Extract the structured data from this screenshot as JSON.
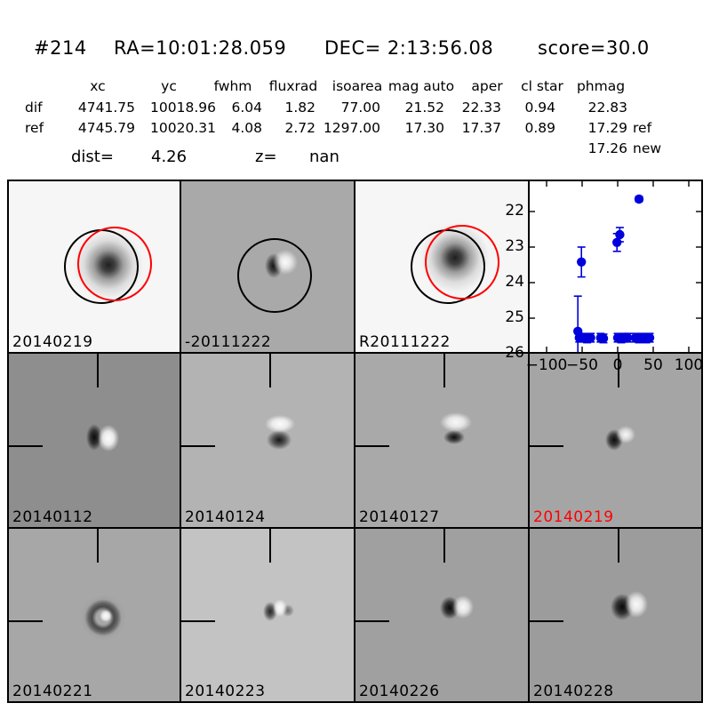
{
  "header": {
    "candidate_id": "#214",
    "ra": "RA=10:01:28.059",
    "dec": "DEC= 2:13:56.08",
    "score": "score=30.0"
  },
  "photometry": {
    "columns": [
      "xc",
      "yc",
      "fwhm",
      "fluxrad",
      "isoarea",
      "mag auto",
      "aper",
      "cl star",
      "phmag"
    ],
    "rows": [
      {
        "label": "dif",
        "values": [
          "4741.75",
          "10018.96",
          "6.04",
          "1.82",
          "77.00",
          "21.52",
          "22.33",
          "0.94",
          "22.83"
        ],
        "suffix": ""
      },
      {
        "label": "ref",
        "values": [
          "4745.79",
          "10020.31",
          "4.08",
          "2.72",
          "1297.00",
          "17.30",
          "17.37",
          "0.89",
          "17.29"
        ],
        "suffix": "ref"
      }
    ],
    "extra_phmag": {
      "value": "17.26",
      "suffix": "new"
    }
  },
  "info": {
    "dist_label": "dist=",
    "dist_value": "4.26",
    "z_label": "z=",
    "z_value": "nan"
  },
  "stamps": [
    {
      "id": "r1c1",
      "label": "20140219",
      "label_color": "#000000",
      "bg": "#f6f6f6",
      "overlays": "black-circle,red-circle"
    },
    {
      "id": "r1c2",
      "label": "-20111222",
      "label_color": "#000000",
      "bg": "#a9a9a9",
      "overlays": "black-circle"
    },
    {
      "id": "r1c3",
      "label": "R20111222",
      "label_color": "#000000",
      "bg": "#f6f6f6",
      "overlays": "black-circle,red-circle"
    },
    {
      "id": "r2c1",
      "label": "20140112",
      "label_color": "#000000",
      "bg": "#8e8e8e",
      "overlays": "crosshair"
    },
    {
      "id": "r2c2",
      "label": "20140124",
      "label_color": "#000000",
      "bg": "#b3b3b3",
      "overlays": "crosshair"
    },
    {
      "id": "r2c3",
      "label": "20140127",
      "label_color": "#000000",
      "bg": "#a9a9a9",
      "overlays": "crosshair"
    },
    {
      "id": "r2c4",
      "label": "20140219",
      "label_color": "#ff0000",
      "bg": "#a5a5a5",
      "overlays": "crosshair"
    },
    {
      "id": "r3c1",
      "label": "20140221",
      "label_color": "#000000",
      "bg": "#a7a7a7",
      "overlays": "crosshair"
    },
    {
      "id": "r3c2",
      "label": "20140223",
      "label_color": "#000000",
      "bg": "#c3c3c3",
      "overlays": "crosshair"
    },
    {
      "id": "r3c3",
      "label": "20140226",
      "label_color": "#000000",
      "bg": "#a0a0a0",
      "overlays": "crosshair"
    },
    {
      "id": "r3c4",
      "label": "20140228",
      "label_color": "#000000",
      "bg": "#9c9c9c",
      "overlays": "crosshair"
    }
  ],
  "chart_data": {
    "type": "scatter",
    "title": "",
    "xlabel": "",
    "ylabel": "",
    "xlim": [
      -125,
      121
    ],
    "ylim": [
      26.0,
      21.1
    ],
    "y_inverted": true,
    "grid": false,
    "xticks": [
      -100,
      -50,
      0,
      50,
      100
    ],
    "yticks": [
      22,
      23,
      24,
      25,
      26
    ],
    "marker_color": "#0000dd",
    "series": [
      {
        "name": "detections",
        "points": [
          {
            "x": -51,
            "m": 23.42,
            "e": 0.42
          },
          {
            "x": -1,
            "m": 22.87,
            "e": 0.25
          },
          {
            "x": 3,
            "m": 22.65,
            "e": 0.2
          },
          {
            "x": 30,
            "m": 21.65,
            "e": 0.07
          }
        ]
      },
      {
        "name": "limits",
        "points": [
          {
            "x": -56,
            "m": 25.37,
            "eu": 0.99,
            "ed": 2.0
          },
          {
            "x": -54,
            "m": 25.55,
            "e": 0.12
          },
          {
            "x": -49,
            "m": 25.55,
            "e": 0.12
          },
          {
            "x": -43,
            "m": 25.57,
            "e": 0.12
          },
          {
            "x": -38,
            "m": 25.55,
            "e": 0.12
          },
          {
            "x": -24,
            "m": 25.55,
            "e": 0.12
          },
          {
            "x": -20,
            "m": 25.57,
            "e": 0.12
          },
          {
            "x": 0,
            "m": 25.55,
            "e": 0.12
          },
          {
            "x": 5,
            "m": 25.57,
            "e": 0.12
          },
          {
            "x": 9,
            "m": 25.55,
            "e": 0.12
          },
          {
            "x": 14,
            "m": 25.55,
            "e": 0.12
          },
          {
            "x": 25,
            "m": 25.55,
            "e": 0.12
          },
          {
            "x": 30,
            "m": 25.57,
            "e": 0.12
          },
          {
            "x": 35,
            "m": 25.55,
            "e": 0.12
          },
          {
            "x": 40,
            "m": 25.57,
            "e": 0.12
          },
          {
            "x": 45,
            "m": 25.55,
            "e": 0.12
          }
        ]
      }
    ]
  }
}
